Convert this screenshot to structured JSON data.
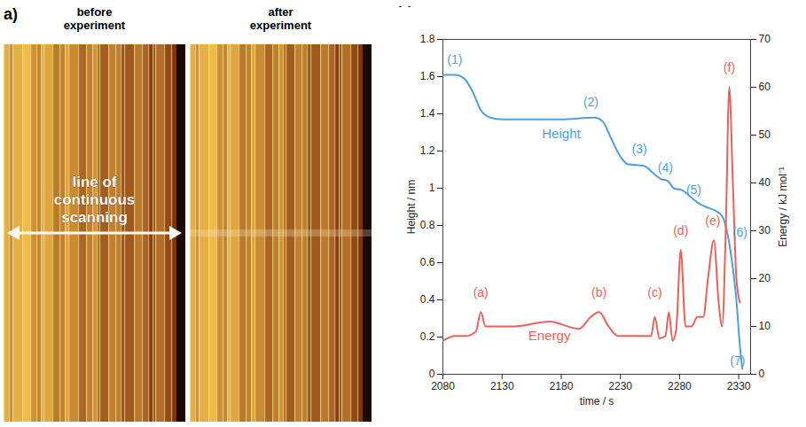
{
  "panel_letters": [
    "a)",
    "b)"
  ],
  "panel_a": {
    "titles": [
      "before experiment",
      "after experiment"
    ],
    "arrow_label": "line of continuous scanning"
  },
  "chart_data": {
    "type": "line",
    "x_label": "time / s",
    "y_label": "Height / nm",
    "y2_label": "Energy / kJ mol⁻¹",
    "xlim": [
      2080,
      2340
    ],
    "xticks": [
      2080,
      2130,
      2180,
      2230,
      2280,
      2330
    ],
    "ylim": [
      0,
      1.8
    ],
    "yticks": [
      0,
      0.2,
      0.4,
      0.6,
      0.8,
      1,
      1.2,
      1.4,
      1.6,
      1.8
    ],
    "y2lim": [
      0,
      70
    ],
    "y2ticks": [
      0,
      10,
      20,
      30,
      40,
      50,
      60,
      70
    ],
    "series": [
      {
        "name": "Height",
        "color": "#4f9fd8",
        "axis": "y",
        "x": [
          2080,
          2090,
          2098,
          2105,
          2112,
          2120,
          2130,
          2180,
          2208,
          2215,
          2222,
          2230,
          2236,
          2250,
          2258,
          2264,
          2270,
          2275,
          2282,
          2290,
          2296,
          2302,
          2310,
          2316,
          2320,
          2324,
          2328,
          2331,
          2333
        ],
        "values": [
          1.61,
          1.61,
          1.59,
          1.52,
          1.42,
          1.38,
          1.37,
          1.37,
          1.38,
          1.36,
          1.27,
          1.17,
          1.13,
          1.12,
          1.08,
          1.05,
          1.04,
          1.0,
          0.99,
          0.95,
          0.92,
          0.9,
          0.88,
          0.85,
          0.77,
          0.62,
          0.4,
          0.15,
          0.03
        ]
      },
      {
        "name": "Energy",
        "color": "#e8625c",
        "axis": "y2",
        "x": [
          2080,
          2090,
          2100,
          2108,
          2112,
          2116,
          2140,
          2170,
          2195,
          2205,
          2212,
          2220,
          2228,
          2250,
          2256,
          2259,
          2263,
          2268,
          2271,
          2274,
          2277,
          2281,
          2285,
          2290,
          2295,
          2300,
          2304,
          2309,
          2313,
          2316,
          2319,
          2322,
          2325,
          2328,
          2331
        ],
        "values": [
          7,
          8,
          8,
          9,
          13,
          10,
          10,
          11,
          9.5,
          12,
          13,
          10,
          8,
          8,
          8,
          12,
          7.5,
          8,
          13,
          7,
          9,
          26,
          10,
          10,
          12,
          12,
          20,
          28,
          15,
          10,
          30,
          60,
          40,
          20,
          15
        ]
      }
    ],
    "annotations": [
      {
        "text": "(1)",
        "x": 2090,
        "y": 1.69,
        "axis": "y"
      },
      {
        "text": "(2)",
        "x": 2205,
        "y": 1.46,
        "axis": "y"
      },
      {
        "text": "(3)",
        "x": 2246,
        "y": 1.21,
        "axis": "y"
      },
      {
        "text": "(4)",
        "x": 2268,
        "y": 1.11,
        "axis": "y"
      },
      {
        "text": "(5)",
        "x": 2292,
        "y": 0.99,
        "axis": "y"
      },
      {
        "text": "(6)",
        "x": 2331,
        "y": 0.76,
        "axis": "y"
      },
      {
        "text": "(7)",
        "x": 2329,
        "y": 0.07,
        "axis": "y"
      },
      {
        "text": "(a)",
        "x": 2112,
        "y": 17,
        "axis": "y2"
      },
      {
        "text": "(b)",
        "x": 2212,
        "y": 17,
        "axis": "y2"
      },
      {
        "text": "(c)",
        "x": 2259,
        "y": 17,
        "axis": "y2"
      },
      {
        "text": "(d)",
        "x": 2281,
        "y": 30,
        "axis": "y2"
      },
      {
        "text": "(e)",
        "x": 2308,
        "y": 32,
        "axis": "y2"
      },
      {
        "text": "(f)",
        "x": 2322,
        "y": 64,
        "axis": "y2"
      }
    ]
  }
}
